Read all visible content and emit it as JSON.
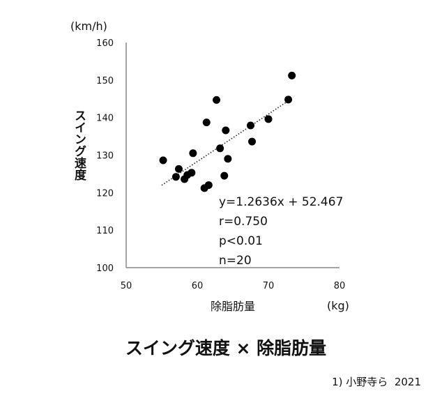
{
  "chart_data": {
    "type": "scatter",
    "title": "スイング速度 × 除脂肪量",
    "source": "1) 小野寺ら  2021",
    "ylabel": "スイング速度",
    "xlabel": "除脂肪量",
    "y_unit": "(km/h)",
    "x_unit": "(kg)",
    "xlim": [
      50,
      80
    ],
    "ylim": [
      100,
      160
    ],
    "x_ticks": [
      "50",
      "60",
      "70",
      "80"
    ],
    "y_ticks": [
      "100",
      "110",
      "120",
      "130",
      "140",
      "150",
      "160"
    ],
    "grid": false,
    "legend": "none",
    "points": [
      {
        "x": 55.2,
        "y": 128.6
      },
      {
        "x": 57.0,
        "y": 124.2
      },
      {
        "x": 57.4,
        "y": 126.3
      },
      {
        "x": 58.2,
        "y": 123.6
      },
      {
        "x": 58.6,
        "y": 124.7
      },
      {
        "x": 59.2,
        "y": 125.3
      },
      {
        "x": 59.4,
        "y": 130.5
      },
      {
        "x": 61.0,
        "y": 121.2
      },
      {
        "x": 61.6,
        "y": 122.0
      },
      {
        "x": 61.3,
        "y": 138.7
      },
      {
        "x": 62.7,
        "y": 144.7
      },
      {
        "x": 63.2,
        "y": 131.8
      },
      {
        "x": 63.8,
        "y": 124.5
      },
      {
        "x": 64.0,
        "y": 136.6
      },
      {
        "x": 64.3,
        "y": 129.0
      },
      {
        "x": 67.5,
        "y": 137.9
      },
      {
        "x": 67.7,
        "y": 133.6
      },
      {
        "x": 70.0,
        "y": 139.6
      },
      {
        "x": 72.8,
        "y": 144.8
      },
      {
        "x": 73.3,
        "y": 151.2
      }
    ],
    "trendline": {
      "slope": 1.2636,
      "intercept": 52.467,
      "x_range": [
        55.0,
        72.8
      ],
      "style": "dotted"
    },
    "annotations": [
      "y=1.2636x + 52.467",
      "r=0.750",
      "p<0.01",
      "n=20"
    ],
    "colors": {
      "points": "#000000",
      "axis": "#888888",
      "trendline": "#222222"
    }
  }
}
